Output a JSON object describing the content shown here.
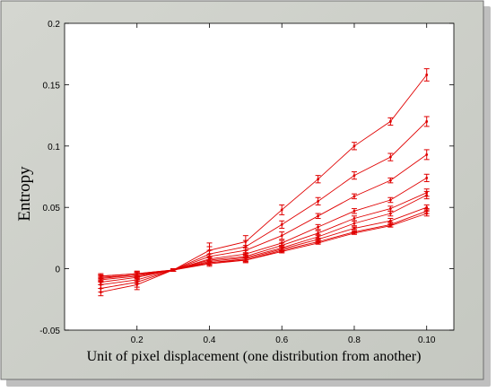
{
  "chart_data": {
    "type": "line",
    "title": "",
    "xlabel": "Unit of pixel displacement (one distribution from another)",
    "ylabel": "Entropy",
    "xlim": [
      0.0,
      0.1075
    ],
    "ylim": [
      -0.05,
      0.2
    ],
    "x": [
      0.1,
      0.2,
      0.3,
      0.4,
      0.5,
      0.6,
      0.7,
      0.8,
      0.9,
      0.1
    ],
    "x_tick_labels": [
      "0.2",
      "0.4",
      "0.6",
      "0.8",
      "0.10"
    ],
    "x_tick_values": [
      0.2,
      0.4,
      0.6,
      0.8,
      0.1
    ],
    "y_tick_labels": [
      "-0.05",
      "0",
      "0.05",
      "0.1",
      "0.15",
      "0.2"
    ],
    "y_tick_values": [
      -0.05,
      0,
      0.05,
      0.1,
      0.15,
      0.2
    ],
    "grid": false,
    "error_bars": true,
    "line_color": "#e00000",
    "series": [
      {
        "values": [
          -0.019,
          -0.013,
          -0.001,
          0.015,
          0.022,
          0.048,
          0.073,
          0.1,
          0.12,
          0.158
        ],
        "errors": [
          0.003,
          0.004,
          0.001,
          0.006,
          0.005,
          0.004,
          0.003,
          0.003,
          0.003,
          0.005
        ]
      },
      {
        "values": [
          -0.016,
          -0.011,
          -0.001,
          0.012,
          0.018,
          0.036,
          0.055,
          0.076,
          0.091,
          0.12
        ],
        "errors": [
          0.003,
          0.004,
          0.001,
          0.006,
          0.005,
          0.003,
          0.003,
          0.003,
          0.003,
          0.004
        ]
      },
      {
        "values": [
          -0.013,
          -0.009,
          -0.001,
          0.01,
          0.015,
          0.027,
          0.043,
          0.059,
          0.072,
          0.093
        ],
        "errors": [
          0.003,
          0.003,
          0.001,
          0.005,
          0.004,
          0.003,
          0.002,
          0.002,
          0.002,
          0.004
        ]
      },
      {
        "values": [
          -0.011,
          -0.007,
          -0.001,
          0.008,
          0.012,
          0.021,
          0.034,
          0.047,
          0.056,
          0.074
        ],
        "errors": [
          0.002,
          0.003,
          0.001,
          0.004,
          0.003,
          0.002,
          0.002,
          0.002,
          0.002,
          0.003
        ]
      },
      {
        "values": [
          -0.009,
          -0.006,
          -0.001,
          0.007,
          0.01,
          0.019,
          0.029,
          0.041,
          0.049,
          0.062
        ],
        "errors": [
          0.002,
          0.002,
          0.001,
          0.003,
          0.003,
          0.002,
          0.002,
          0.002,
          0.002,
          0.003
        ]
      },
      {
        "values": [
          -0.008,
          -0.005,
          -0.001,
          0.006,
          0.009,
          0.017,
          0.026,
          0.037,
          0.045,
          0.06
        ],
        "errors": [
          0.002,
          0.002,
          0.001,
          0.003,
          0.003,
          0.002,
          0.002,
          0.002,
          0.002,
          0.003
        ]
      },
      {
        "values": [
          -0.007,
          -0.005,
          -0.001,
          0.005,
          0.008,
          0.016,
          0.024,
          0.033,
          0.039,
          0.05
        ],
        "errors": [
          0.002,
          0.002,
          0.001,
          0.002,
          0.002,
          0.002,
          0.001,
          0.001,
          0.002,
          0.002
        ]
      },
      {
        "values": [
          -0.006,
          -0.004,
          -0.001,
          0.005,
          0.007,
          0.015,
          0.022,
          0.03,
          0.036,
          0.047
        ],
        "errors": [
          0.002,
          0.002,
          0.001,
          0.002,
          0.002,
          0.002,
          0.001,
          0.001,
          0.002,
          0.002
        ]
      },
      {
        "values": [
          -0.006,
          -0.004,
          -0.001,
          0.004,
          0.007,
          0.014,
          0.021,
          0.029,
          0.035,
          0.045
        ],
        "errors": [
          0.001,
          0.002,
          0.001,
          0.002,
          0.002,
          0.001,
          0.001,
          0.001,
          0.001,
          0.002
        ]
      }
    ]
  }
}
